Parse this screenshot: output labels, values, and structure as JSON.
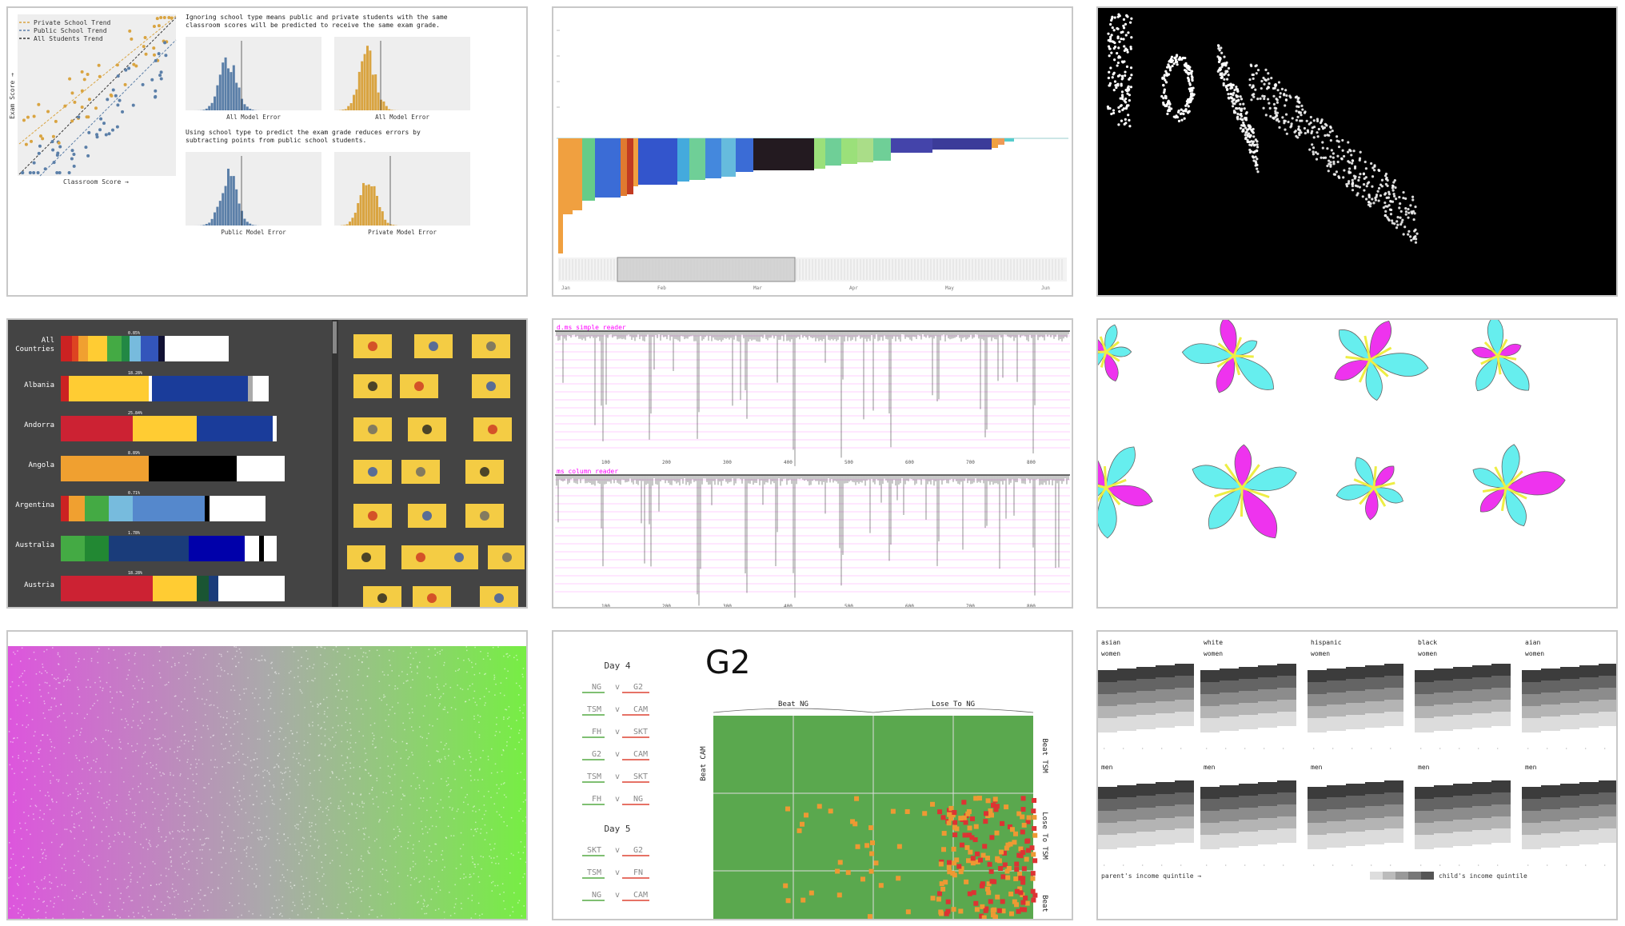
{
  "gallery": {
    "thumbnails": [
      {
        "id": "school-model-error"
      },
      {
        "id": "sorted-bars"
      },
      {
        "id": "scatter-text"
      },
      {
        "id": "flag-colors"
      },
      {
        "id": "reader-timing"
      },
      {
        "id": "petal-shapes"
      },
      {
        "id": "noise-gradient"
      },
      {
        "id": "match-grid"
      },
      {
        "id": "income-quintile"
      }
    ]
  },
  "chart_data": [
    {
      "type": "scatter",
      "legend": [
        "Private School Trend",
        "Public School Trend",
        "All Students Trend"
      ],
      "xlabel": "Classroom Score →",
      "ylabel": "Exam Score →",
      "text_1a": "Ignoring school type means public and private students with the same",
      "text_1b": "classroom scores will be predicted to receive the same exam grade.",
      "text_2a": "Using school type to predict the exam grade reduces errors by",
      "text_2b": "subtracting points from public school students.",
      "hist_labels": [
        "All Model Error",
        "All Model Error",
        "Public Model Error",
        "Private Model Error"
      ],
      "colors": {
        "private": "#d9a441",
        "public": "#5b7fa8",
        "all": "#333333"
      }
    },
    {
      "type": "bar",
      "colors": [
        "#f0a040",
        "#e07a30",
        "#66cc88",
        "#3b6cd6",
        "#c23b22",
        "#3355cc",
        "#44aadd",
        "#6fcf97",
        "#231a20",
        "#9be07a",
        "#4444aa",
        "#3b3b99",
        "#55cccc"
      ],
      "x_ticks": [
        "Jan",
        "Feb",
        "Mar",
        "Apr",
        "May",
        "Jun"
      ]
    },
    {
      "type": "scatter",
      "background": "#000000",
      "point_color": "#ffffff"
    },
    {
      "type": "bar",
      "countries": [
        "All Countries",
        "Albania",
        "Andorra",
        "Angola",
        "Argentina",
        "Australia",
        "Austria"
      ],
      "pct_labels": [
        "0.85%",
        "18.28%",
        "25.84%",
        "8.89%",
        "0.71%",
        "1.78%",
        "18.28%"
      ],
      "background": "#444444"
    },
    {
      "type": "line",
      "panels": [
        {
          "title": "d.ms simple reader"
        },
        {
          "title": "ms column reader"
        }
      ],
      "x_ticks": [
        "100",
        "200",
        "300",
        "400",
        "500",
        "600",
        "700",
        "800"
      ],
      "accent": "#ff00ff"
    },
    {
      "type": "scatter",
      "colors": {
        "a": "#ee33ee",
        "b": "#66eeee",
        "center": "#eeee44"
      }
    },
    {
      "type": "scatter",
      "colors": {
        "left": "#dd55dd",
        "mid": "#aaaaaa",
        "right": "#77ee44"
      }
    },
    {
      "type": "heatmap",
      "title": "G2",
      "days": [
        {
          "label": "Day 4",
          "matches": [
            [
              "NG",
              "G2"
            ],
            [
              "TSM",
              "CAM"
            ],
            [
              "FH",
              "SKT"
            ],
            [
              "G2",
              "CAM"
            ],
            [
              "TSM",
              "SKT"
            ],
            [
              "FH",
              "NG"
            ]
          ]
        },
        {
          "label": "Day 5",
          "matches": [
            [
              "SKT",
              "G2"
            ],
            [
              "TSM",
              "FN"
            ],
            [
              "NG",
              "CAM"
            ]
          ]
        }
      ],
      "vs": "v",
      "col_labels": [
        "Beat NG",
        "Lose To NG"
      ],
      "row_labels_left": [
        "Beat CAM"
      ],
      "row_labels_right": [
        "Beat TSM",
        "Lose To TSM",
        "Beat"
      ],
      "colors": {
        "win": "#5aa84e",
        "loss": "#ee9933",
        "red": "#dd3333"
      }
    },
    {
      "type": "heatmap",
      "groups_top": [
        [
          "asian",
          "women"
        ],
        [
          "white",
          "women"
        ],
        [
          "hispanic",
          "women"
        ],
        [
          "black",
          "women"
        ],
        [
          "aian",
          "women"
        ]
      ],
      "groups_bottom": [
        "men",
        "men",
        "men",
        "men",
        "men"
      ],
      "footer_left": "parent's income quintile →",
      "footer_right": "child's income quintile"
    }
  ]
}
